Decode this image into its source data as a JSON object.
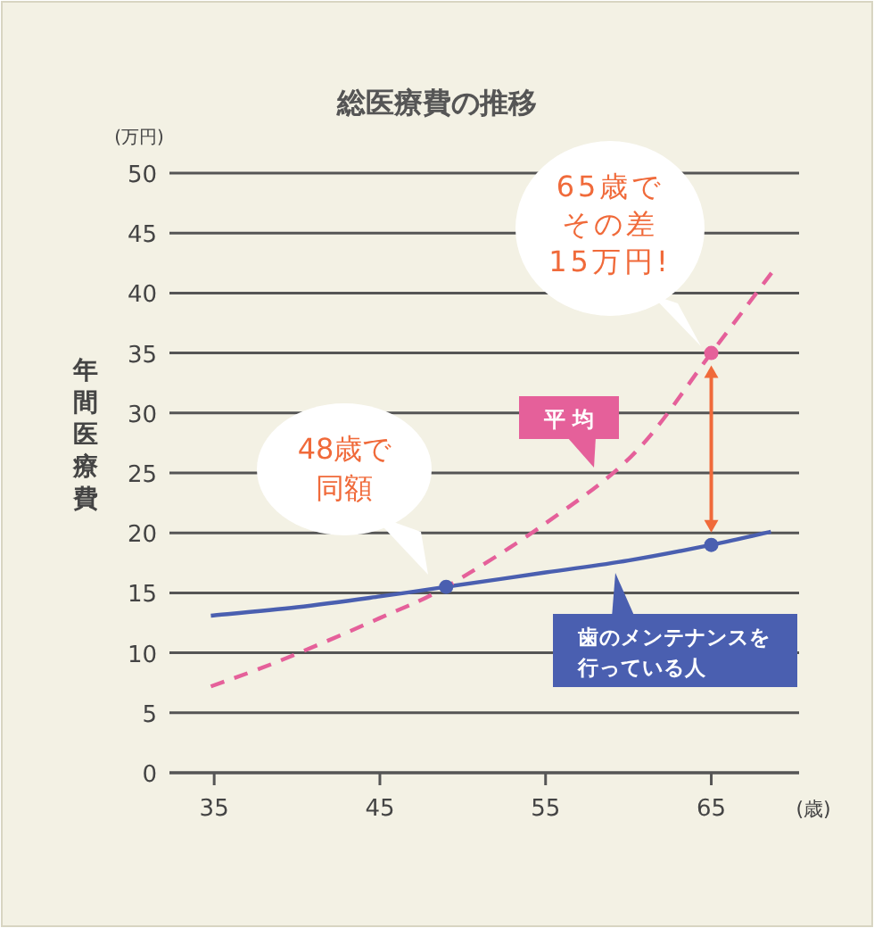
{
  "chart_data": {
    "type": "line",
    "title": "総医療費の推移",
    "xlabel": "(歳)",
    "ylabel": "年間医療費",
    "annotations": [
      "(万円)",
      "48歳で",
      "同額",
      "65歳で",
      "その差",
      "15万円!"
    ],
    "xlim": [
      32.3,
      70.3
    ],
    "ylim": [
      0,
      50
    ],
    "xticks": [
      35,
      45,
      55,
      65
    ],
    "yticks": [
      0,
      5,
      10,
      15,
      20,
      25,
      30,
      35,
      40,
      45,
      50
    ],
    "grid": "y",
    "legend": "bottom right",
    "series": [
      {
        "name": "歯のメンテナンスを行っている人",
        "line_style": "solid",
        "color": "#4a5fb0",
        "x": [
          34.8,
          40,
          45,
          49,
          55,
          60,
          65,
          68.6
        ],
        "values": [
          13.1,
          13.8,
          14.7,
          15.5,
          16.7,
          17.7,
          19,
          20.1
        ]
      },
      {
        "name": "平 均",
        "line_style": "dashed",
        "color": "#e5609a",
        "x": [
          34.8,
          38.9,
          45,
          49,
          55,
          60.4,
          65,
          68.65
        ],
        "values": [
          7.2,
          9.3,
          12.9,
          15.5,
          20.8,
          26.7,
          35,
          41.7
        ]
      },
      {
        "type": "scatter",
        "marker": "circle",
        "color": "#4a5fb0",
        "x": [
          49,
          65
        ],
        "values": [
          15.5,
          19
        ]
      },
      {
        "type": "scatter",
        "marker": "circle",
        "color": "#e5609a",
        "x": [
          65
        ],
        "values": [
          35
        ]
      }
    ]
  }
}
